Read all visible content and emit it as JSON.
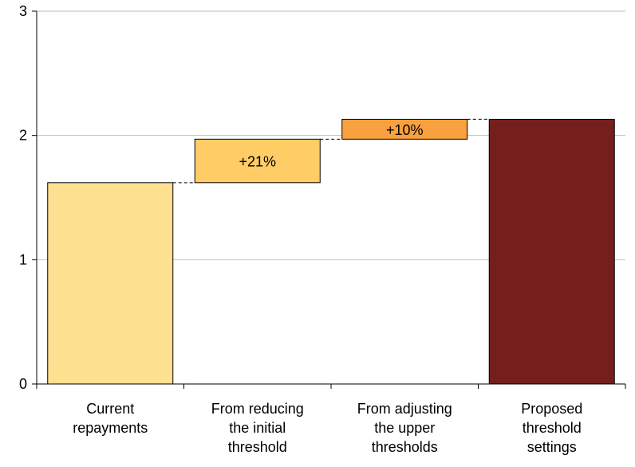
{
  "chart_data": {
    "type": "bar",
    "subtype": "waterfall",
    "title": "",
    "xlabel": "",
    "ylabel": "",
    "ylim": [
      0,
      3
    ],
    "yticks": [
      0,
      1,
      2,
      3
    ],
    "grid": true,
    "categories": [
      [
        "Current",
        "repayments"
      ],
      [
        "From reducing",
        "the initial",
        "threshold"
      ],
      [
        "From adjusting",
        "the upper",
        "thresholds"
      ],
      [
        "Proposed",
        "threshold",
        "settings"
      ]
    ],
    "bars": [
      {
        "kind": "total",
        "base": 0,
        "value": 1.62,
        "color": "#fde190",
        "label": ""
      },
      {
        "kind": "delta",
        "base": 1.62,
        "value": 0.35,
        "color": "#ffcc66",
        "label": "+21%"
      },
      {
        "kind": "delta",
        "base": 1.97,
        "value": 0.16,
        "color": "#f9a03f",
        "label": "+10%"
      },
      {
        "kind": "total",
        "base": 0,
        "value": 2.13,
        "color": "#741f1c",
        "label": ""
      }
    ]
  }
}
